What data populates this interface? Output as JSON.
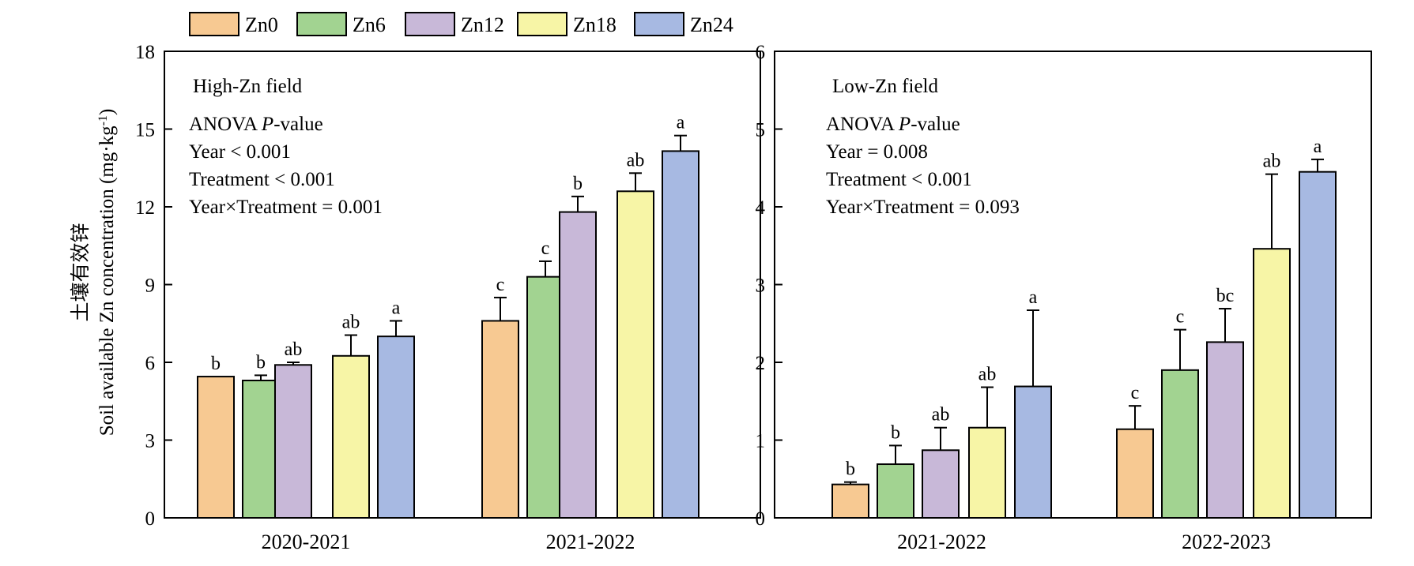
{
  "legend": [
    {
      "label": "Zn0",
      "color": "#f7c992"
    },
    {
      "label": "Zn6",
      "color": "#a2d391"
    },
    {
      "label": "Zn12",
      "color": "#c8b8d8"
    },
    {
      "label": "Zn18",
      "color": "#f7f5a6"
    },
    {
      "label": "Zn24",
      "color": "#a7b9e2"
    }
  ],
  "ylabel_cn": "土壤有效锌",
  "ylabel_en": "Soil available Zn concentration (mg·kg",
  "ylabel_sup": "-1",
  "ylabel_close": ")",
  "chart_data": [
    {
      "type": "bar",
      "title": "High-Zn field",
      "stats": [
        "ANOVA",
        "P",
        "-value",
        "Year < 0.001",
        "Treatment < 0.001",
        "Year×Treatment = 0.001"
      ],
      "ylim": [
        0,
        18
      ],
      "yticks": [
        0,
        3,
        6,
        9,
        12,
        15,
        18
      ],
      "categories": [
        "2020-2021",
        "2021-2022"
      ],
      "series": [
        {
          "name": "Zn0",
          "values": [
            5.45,
            7.6
          ],
          "err": [
            0.0,
            0.9
          ],
          "letters": [
            "b",
            "c"
          ]
        },
        {
          "name": "Zn6",
          "values": [
            5.3,
            9.3
          ],
          "err": [
            0.2,
            0.6
          ],
          "letters": [
            "b",
            "c"
          ]
        },
        {
          "name": "Zn12",
          "values": [
            5.9,
            11.8
          ],
          "err": [
            0.1,
            0.6
          ],
          "letters": [
            "ab",
            "b"
          ]
        },
        {
          "name": "Zn18",
          "values": [
            6.25,
            12.6
          ],
          "err": [
            0.8,
            0.7
          ],
          "letters": [
            "ab",
            "ab"
          ]
        },
        {
          "name": "Zn24",
          "values": [
            7.0,
            14.15
          ],
          "err": [
            0.6,
            0.6
          ],
          "letters": [
            "a",
            "a"
          ]
        }
      ]
    },
    {
      "type": "bar",
      "title": "Low-Zn field",
      "stats": [
        "ANOVA",
        "P",
        "-value",
        "Year = 0.008",
        "Treatment < 0.001",
        "Year×Treatment = 0.093"
      ],
      "ylim": [
        0,
        6
      ],
      "yticks": [
        0,
        1,
        2,
        3,
        4,
        5,
        6
      ],
      "categories": [
        "2021-2022",
        "2022-2023"
      ],
      "series": [
        {
          "name": "Zn0",
          "values": [
            0.43,
            1.14
          ],
          "err": [
            0.03,
            0.3
          ],
          "letters": [
            "b",
            "c"
          ]
        },
        {
          "name": "Zn6",
          "values": [
            0.69,
            1.9
          ],
          "err": [
            0.24,
            0.52
          ],
          "letters": [
            "b",
            "c"
          ]
        },
        {
          "name": "Zn12",
          "values": [
            0.87,
            2.26
          ],
          "err": [
            0.29,
            0.43
          ],
          "letters": [
            "ab",
            "bc"
          ]
        },
        {
          "name": "Zn18",
          "values": [
            1.16,
            3.46
          ],
          "err": [
            0.52,
            0.96
          ],
          "letters": [
            "ab",
            "ab"
          ]
        },
        {
          "name": "Zn24",
          "values": [
            1.69,
            4.45
          ],
          "err": [
            0.98,
            0.16
          ],
          "letters": [
            "a",
            "a"
          ]
        }
      ]
    }
  ]
}
